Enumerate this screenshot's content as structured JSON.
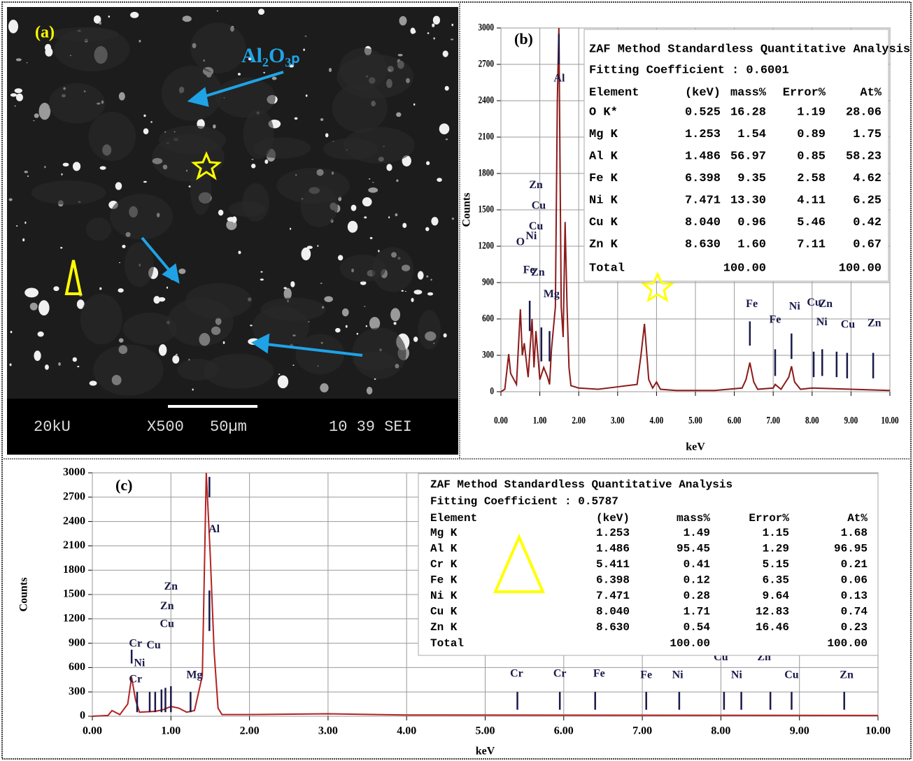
{
  "image_panel": {
    "label": "(a)",
    "annotation": "Al₂O₃ₚ",
    "footer": [
      "20kU",
      "X500",
      "50µm",
      "10 39 SEI"
    ]
  },
  "chart_data": [
    {
      "type": "line",
      "label": "(b)",
      "xlabel": "keV",
      "ylabel": "Counts",
      "grid": true,
      "xlim": [
        0,
        10
      ],
      "ylim": [
        0,
        3000
      ],
      "xticks": [
        {
          "value": 0,
          "label": "0.00"
        },
        {
          "value": 1,
          "label": "1.00"
        },
        {
          "value": 2,
          "label": "2.00"
        },
        {
          "value": 3,
          "label": "3.00"
        },
        {
          "value": 4,
          "label": "4.00"
        },
        {
          "value": 5,
          "label": "5.00"
        },
        {
          "value": 6,
          "label": "6.00"
        },
        {
          "value": 7,
          "label": "7.00"
        },
        {
          "value": 8,
          "label": "8.00"
        },
        {
          "value": 9,
          "label": "9.00"
        },
        {
          "value": 10,
          "label": "10.00"
        }
      ],
      "yticks": [
        0,
        300,
        600,
        900,
        1200,
        1500,
        1800,
        2100,
        2400,
        2700,
        3000
      ],
      "x": [
        0,
        0.1,
        0.2,
        0.25,
        0.3,
        0.4,
        0.5,
        0.55,
        0.6,
        0.7,
        0.8,
        0.85,
        0.9,
        1.0,
        1.1,
        1.2,
        1.25,
        1.3,
        1.4,
        1.45,
        1.49,
        1.55,
        1.6,
        1.65,
        1.7,
        1.75,
        1.8,
        2.0,
        2.5,
        3.0,
        3.5,
        3.6,
        3.69,
        3.8,
        3.9,
        4.0,
        4.1,
        4.5,
        5.5,
        6.2,
        6.3,
        6.4,
        6.5,
        6.6,
        7.0,
        7.05,
        7.2,
        7.4,
        7.47,
        7.55,
        7.7,
        8.0,
        9.0,
        10.0
      ],
      "series": [
        {
          "color": "#8b1a1a",
          "values": [
            0,
            20,
            310,
            150,
            120,
            60,
            680,
            300,
            400,
            120,
            600,
            200,
            500,
            100,
            200,
            120,
            60,
            350,
            700,
            2400,
            3000,
            700,
            450,
            1400,
            700,
            200,
            50,
            30,
            20,
            40,
            60,
            300,
            560,
            100,
            30,
            80,
            20,
            10,
            10,
            30,
            100,
            240,
            80,
            20,
            30,
            60,
            20,
            120,
            210,
            80,
            20,
            30,
            20,
            10
          ]
        }
      ],
      "peak_labels": [
        {
          "text": "Zn",
          "x": 0.9,
          "y": 1700
        },
        {
          "text": "Cu",
          "x": 0.97,
          "y": 1530
        },
        {
          "text": "Cu",
          "x": 0.9,
          "y": 1360
        },
        {
          "text": "O",
          "x": 0.5,
          "y": 1230
        },
        {
          "text": "Ni",
          "x": 0.78,
          "y": 1280
        },
        {
          "text": "Fe",
          "x": 0.72,
          "y": 1000
        },
        {
          "text": "Zn",
          "x": 0.95,
          "y": 980
        },
        {
          "text": "Mg",
          "x": 1.3,
          "y": 800
        },
        {
          "text": "Al",
          "x": 1.5,
          "y": 2580
        },
        {
          "text": "Fe",
          "x": 6.45,
          "y": 720
        },
        {
          "text": "Fe",
          "x": 7.05,
          "y": 590
        },
        {
          "text": "Ni",
          "x": 7.55,
          "y": 700
        },
        {
          "text": "Cu",
          "x": 8.05,
          "y": 730
        },
        {
          "text": "Zn",
          "x": 8.35,
          "y": 720
        },
        {
          "text": "Ni",
          "x": 8.25,
          "y": 570
        },
        {
          "text": "Cu",
          "x": 8.92,
          "y": 550
        },
        {
          "text": "Zn",
          "x": 9.6,
          "y": 560
        }
      ],
      "markers": [
        {
          "x": 6.4,
          "y": [
            380,
            580
          ]
        },
        {
          "x": 7.05,
          "y": [
            130,
            350
          ]
        },
        {
          "x": 7.47,
          "y": [
            270,
            480
          ]
        },
        {
          "x": 8.04,
          "y": [
            120,
            330
          ]
        },
        {
          "x": 8.26,
          "y": [
            130,
            350
          ]
        },
        {
          "x": 8.63,
          "y": [
            120,
            330
          ]
        },
        {
          "x": 8.9,
          "y": [
            110,
            320
          ]
        },
        {
          "x": 9.57,
          "y": [
            110,
            320
          ]
        },
        {
          "x": 1.04,
          "y": [
            250,
            530
          ]
        },
        {
          "x": 1.25,
          "y": [
            250,
            500
          ]
        },
        {
          "x": 0.74,
          "y": [
            500,
            750
          ]
        },
        {
          "x": 1.49,
          "y": [
            2700,
            2950
          ]
        }
      ],
      "table": {
        "title": "ZAF Method Standardless Quantitative Analysis",
        "subtitle": "Fitting Coefficient : 0.6001",
        "header": [
          "Element",
          "(keV)",
          "mass%",
          "Error%",
          "At%"
        ],
        "rows": [
          [
            "O  K*",
            "0.525",
            "16.28",
            "1.19",
            "28.06"
          ],
          [
            "Mg K",
            "1.253",
            "1.54",
            "0.89",
            "1.75"
          ],
          [
            "Al K",
            "1.486",
            "56.97",
            "0.85",
            "58.23"
          ],
          [
            "Fe K",
            "6.398",
            "9.35",
            "2.58",
            "4.62"
          ],
          [
            "Ni K",
            "7.471",
            "13.30",
            "4.11",
            "6.25"
          ],
          [
            "Cu K",
            "8.040",
            "0.96",
            "5.46",
            "0.42"
          ],
          [
            "Zn K",
            "8.630",
            "1.60",
            "7.11",
            "0.67"
          ]
        ],
        "total": [
          "Total",
          "100.00",
          "100.00"
        ]
      }
    },
    {
      "type": "line",
      "label": "(c)",
      "xlabel": "keV",
      "ylabel": "Counts",
      "grid": true,
      "xlim": [
        0,
        10
      ],
      "ylim": [
        0,
        3000
      ],
      "xticks": [
        {
          "value": 0,
          "label": "0.00"
        },
        {
          "value": 1,
          "label": "1.00"
        },
        {
          "value": 2,
          "label": "2.00"
        },
        {
          "value": 3,
          "label": "3.00"
        },
        {
          "value": 4,
          "label": "4.00"
        },
        {
          "value": 5,
          "label": "5.00"
        },
        {
          "value": 6,
          "label": "6.00"
        },
        {
          "value": 7,
          "label": "7.00"
        },
        {
          "value": 8,
          "label": "8.00"
        },
        {
          "value": 9,
          "label": "9.00"
        },
        {
          "value": 10,
          "label": "10.00"
        }
      ],
      "yticks": [
        0,
        300,
        600,
        900,
        1200,
        1500,
        1800,
        2100,
        2400,
        2700,
        3000
      ],
      "x": [
        0,
        0.2,
        0.25,
        0.35,
        0.45,
        0.5,
        0.55,
        0.6,
        0.8,
        0.9,
        1.0,
        1.1,
        1.2,
        1.3,
        1.4,
        1.45,
        1.5,
        1.55,
        1.6,
        1.65,
        2.0,
        3.0,
        4.0,
        10.0
      ],
      "series": [
        {
          "color": "#b22222",
          "values": [
            0,
            10,
            70,
            20,
            150,
            480,
            200,
            50,
            60,
            80,
            120,
            100,
            50,
            70,
            500,
            3000,
            2000,
            800,
            100,
            20,
            20,
            30,
            15,
            10
          ]
        }
      ],
      "peak_labels": [
        {
          "text": "Al",
          "x": 1.55,
          "y": 2300
        },
        {
          "text": "Zn",
          "x": 1.0,
          "y": 1590
        },
        {
          "text": "Zn",
          "x": 0.95,
          "y": 1350
        },
        {
          "text": "Cu",
          "x": 0.95,
          "y": 1130
        },
        {
          "text": "Cr",
          "x": 0.55,
          "y": 890
        },
        {
          "text": "Cu",
          "x": 0.78,
          "y": 870
        },
        {
          "text": "Ni",
          "x": 0.6,
          "y": 650
        },
        {
          "text": "Cr",
          "x": 0.55,
          "y": 450
        },
        {
          "text": "Mg",
          "x": 1.3,
          "y": 500
        },
        {
          "text": "Cr",
          "x": 5.4,
          "y": 520
        },
        {
          "text": "Cr",
          "x": 5.95,
          "y": 520
        },
        {
          "text": "Fe",
          "x": 6.45,
          "y": 520
        },
        {
          "text": "Fe",
          "x": 7.05,
          "y": 500
        },
        {
          "text": "Ni",
          "x": 7.45,
          "y": 500
        },
        {
          "text": "Cu",
          "x": 8.0,
          "y": 720
        },
        {
          "text": "Zn",
          "x": 8.55,
          "y": 720
        },
        {
          "text": "Ni",
          "x": 8.2,
          "y": 500
        },
        {
          "text": "Cu",
          "x": 8.9,
          "y": 500
        },
        {
          "text": "Zn",
          "x": 9.6,
          "y": 500
        }
      ],
      "markers": [
        {
          "x": 5.41,
          "y": [
            80,
            300
          ]
        },
        {
          "x": 5.95,
          "y": [
            80,
            300
          ]
        },
        {
          "x": 6.4,
          "y": [
            80,
            300
          ]
        },
        {
          "x": 7.05,
          "y": [
            80,
            300
          ]
        },
        {
          "x": 7.47,
          "y": [
            80,
            300
          ]
        },
        {
          "x": 8.04,
          "y": [
            80,
            300
          ]
        },
        {
          "x": 8.26,
          "y": [
            80,
            300
          ]
        },
        {
          "x": 8.63,
          "y": [
            80,
            300
          ]
        },
        {
          "x": 8.9,
          "y": [
            80,
            300
          ]
        },
        {
          "x": 9.57,
          "y": [
            80,
            300
          ]
        },
        {
          "x": 0.5,
          "y": [
            650,
            820
          ]
        },
        {
          "x": 0.57,
          "y": [
            50,
            300
          ]
        },
        {
          "x": 0.73,
          "y": [
            50,
            300
          ]
        },
        {
          "x": 0.8,
          "y": [
            50,
            300
          ]
        },
        {
          "x": 0.88,
          "y": [
            50,
            330
          ]
        },
        {
          "x": 0.93,
          "y": [
            50,
            350
          ]
        },
        {
          "x": 1.0,
          "y": [
            50,
            370
          ]
        },
        {
          "x": 1.25,
          "y": [
            50,
            300
          ]
        },
        {
          "x": 1.49,
          "y": [
            2700,
            2950
          ]
        },
        {
          "x": 1.49,
          "y": [
            1050,
            1550
          ]
        }
      ],
      "table": {
        "title": "ZAF Method Standardless Quantitative Analysis",
        "subtitle": "Fitting Coefficient : 0.5787",
        "header": [
          "Element",
          "(keV)",
          "mass%",
          "Error%",
          "At%"
        ],
        "rows": [
          [
            "Mg K",
            "1.253",
            "1.49",
            "1.15",
            "1.68"
          ],
          [
            "Al K",
            "1.486",
            "95.45",
            "1.29",
            "96.95"
          ],
          [
            "Cr K",
            "5.411",
            "0.41",
            "5.15",
            "0.21"
          ],
          [
            "Fe K",
            "6.398",
            "0.12",
            "6.35",
            "0.06"
          ],
          [
            "Ni K",
            "7.471",
            "0.28",
            "9.64",
            "0.13"
          ],
          [
            "Cu K",
            "8.040",
            "1.71",
            "12.83",
            "0.74"
          ],
          [
            "Zn K",
            "8.630",
            "0.54",
            "16.46",
            "0.23"
          ]
        ],
        "total": [
          "Total",
          "100.00",
          "100.00"
        ]
      }
    }
  ]
}
